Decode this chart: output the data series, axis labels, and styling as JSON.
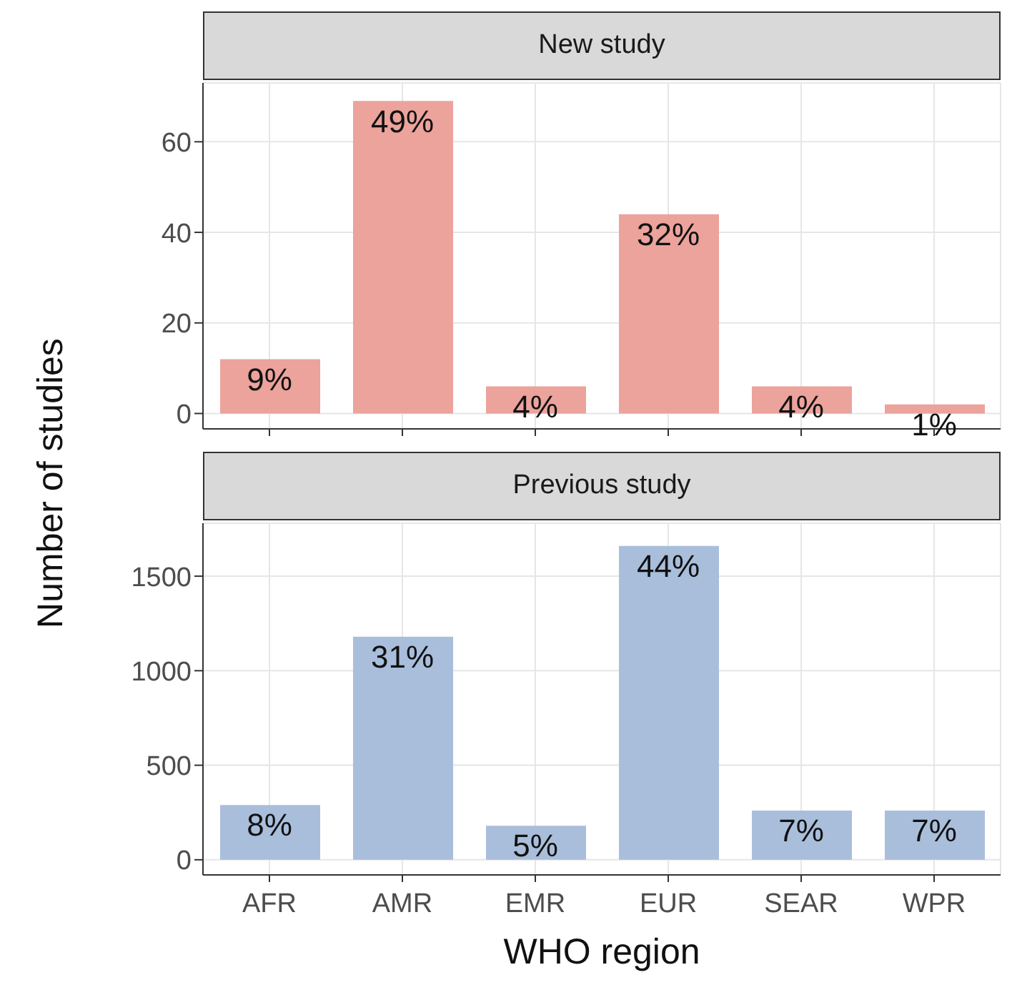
{
  "chart_data": [
    {
      "type": "bar",
      "title": "New study",
      "ylabel": "Number of studies",
      "categories": [
        "AFR",
        "AMR",
        "EMR",
        "EUR",
        "SEAR",
        "WPR"
      ],
      "values": [
        12,
        69,
        6,
        44,
        6,
        2
      ],
      "color": "#eba39c",
      "ylim": [
        -3.4,
        73
      ],
      "yticks": [
        0,
        20,
        40,
        60
      ],
      "grid": true,
      "tick_labels": "y",
      "annotations": [
        {
          "text": "9%",
          "x": "AFR",
          "y": 12
        },
        {
          "text": "49%",
          "x": "AMR",
          "y": 69
        },
        {
          "text": "4%",
          "x": "EMR",
          "y": 6
        },
        {
          "text": "32%",
          "x": "EUR",
          "y": 44
        },
        {
          "text": "4%",
          "x": "SEAR",
          "y": 6
        },
        {
          "text": "1%",
          "x": "WPR",
          "y": 2
        }
      ]
    },
    {
      "type": "bar",
      "title": "Previous study",
      "xlabel": "WHO region",
      "categories": [
        "AFR",
        "AMR",
        "EMR",
        "EUR",
        "SEAR",
        "WPR"
      ],
      "values": [
        290,
        1180,
        180,
        1660,
        260,
        260
      ],
      "color": "#a9bedb",
      "ylim": [
        -80,
        1780
      ],
      "yticks": [
        0,
        500,
        1000,
        1500
      ],
      "grid": true,
      "annotations": [
        {
          "text": "8%",
          "x": "AFR",
          "y": 290
        },
        {
          "text": "31%",
          "x": "AMR",
          "y": 1180
        },
        {
          "text": "5%",
          "x": "EMR",
          "y": 180
        },
        {
          "text": "44%",
          "x": "EUR",
          "y": 1660
        },
        {
          "text": "7%",
          "x": "SEAR",
          "y": 260
        },
        {
          "text": "7%",
          "x": "WPR",
          "y": 260
        }
      ]
    }
  ]
}
